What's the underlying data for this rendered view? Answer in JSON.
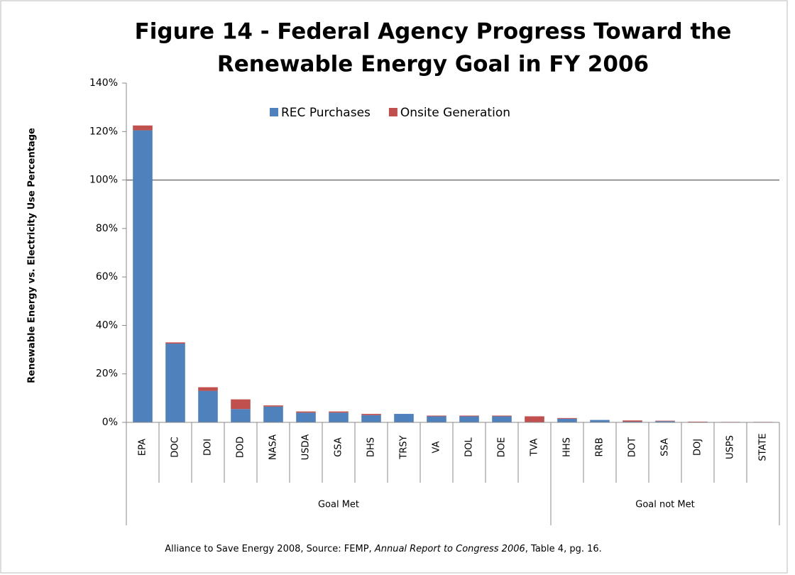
{
  "chart_data": {
    "type": "stacked_bar",
    "title": [
      "Figure 14 - Federal Agency Progress Toward the",
      "Renewable Energy Goal in FY 2006"
    ],
    "y_axis_label": "Renewable Energy vs. Electricity Use Percentage",
    "categories": [
      "EPA",
      "DOC",
      "DOI",
      "DOD",
      "NASA",
      "USDA",
      "GSA",
      "DHS",
      "TRSY",
      "VA",
      "DOL",
      "DOE",
      "TVA",
      "HHS",
      "RRB",
      "DOT",
      "SSA",
      "DOJ",
      "USPS",
      "STATE"
    ],
    "groups": [
      {
        "label": "Goal Met",
        "count": 13
      },
      {
        "label": "Goal not Met",
        "count": 7
      }
    ],
    "series": [
      {
        "name": "REC Purchases",
        "color": "#4f81bd",
        "values": [
          120.5,
          32.5,
          13,
          5.5,
          6.5,
          4,
          4,
          3,
          3.5,
          2.5,
          2.5,
          2.5,
          0,
          1.5,
          1,
          0.3,
          0.5,
          0,
          0,
          0
        ]
      },
      {
        "name": "Onsite Generation",
        "color": "#c0504d",
        "values": [
          2,
          0.5,
          1.5,
          4,
          0.5,
          0.5,
          0.5,
          0.5,
          0,
          0.3,
          0.3,
          0.3,
          2.5,
          0.3,
          0,
          0.5,
          0.2,
          0.3,
          0.2,
          0.2
        ]
      }
    ],
    "ylim": [
      0,
      140
    ],
    "yticks": [
      {
        "value": 0,
        "label": "0%"
      },
      {
        "value": 20,
        "label": "20%"
      },
      {
        "value": 40,
        "label": "40%"
      },
      {
        "value": 60,
        "label": "60%"
      },
      {
        "value": 80,
        "label": "80%"
      },
      {
        "value": 100,
        "label": "100%"
      },
      {
        "value": 120,
        "label": "120%"
      },
      {
        "value": 140,
        "label": "140%"
      }
    ],
    "reference_line": 100,
    "legend": "top",
    "source": [
      "Alliance to Save Energy 2008, Source: FEMP, ",
      "Annual Report to Congress 2006",
      ", Table 4, pg. 16."
    ]
  }
}
